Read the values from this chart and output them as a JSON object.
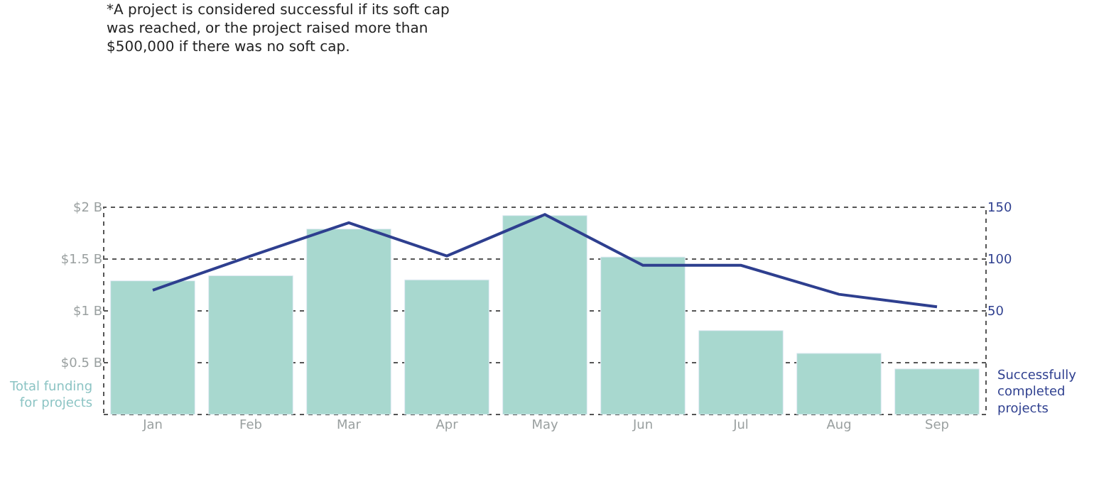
{
  "chart_data": {
    "type": "bar",
    "categories": [
      "Jan",
      "Feb",
      "Mar",
      "Apr",
      "May",
      "Jun",
      "Jul",
      "Aug",
      "Sep"
    ],
    "series": [
      {
        "color": "#a8d8cf",
        "values": [
          1.29,
          1.34,
          1.79,
          1.3,
          1.92,
          1.52,
          0.81,
          0.59,
          0.44
        ]
      },
      {
        "type": "line",
        "axis": "y2",
        "color": "#2e3f8f",
        "values": [
          70,
          103,
          135,
          103,
          143,
          94,
          94,
          66,
          54
        ]
      }
    ],
    "ylim": [
      0,
      2
    ],
    "yticks": [
      {
        "value": 0.5,
        "label": "$0.5 B"
      },
      {
        "value": 1,
        "label": "$1 B"
      },
      {
        "value": 1.5,
        "label": "$1.5 B"
      },
      {
        "value": 2,
        "label": "$2 B"
      }
    ],
    "y2lim": [
      -50,
      150
    ],
    "y2ticks": [
      50,
      100,
      150
    ],
    "ylabel": "Total funding\nfor projects",
    "y2label": "Successfully\ncompleted\nprojects",
    "annotations": [
      "*A project is considered successful if its soft cap\nwas reached, or the project raised more than\n$500,000 if there was no soft cap."
    ],
    "grid": "y",
    "marker": "none",
    "line_style": "solid"
  }
}
